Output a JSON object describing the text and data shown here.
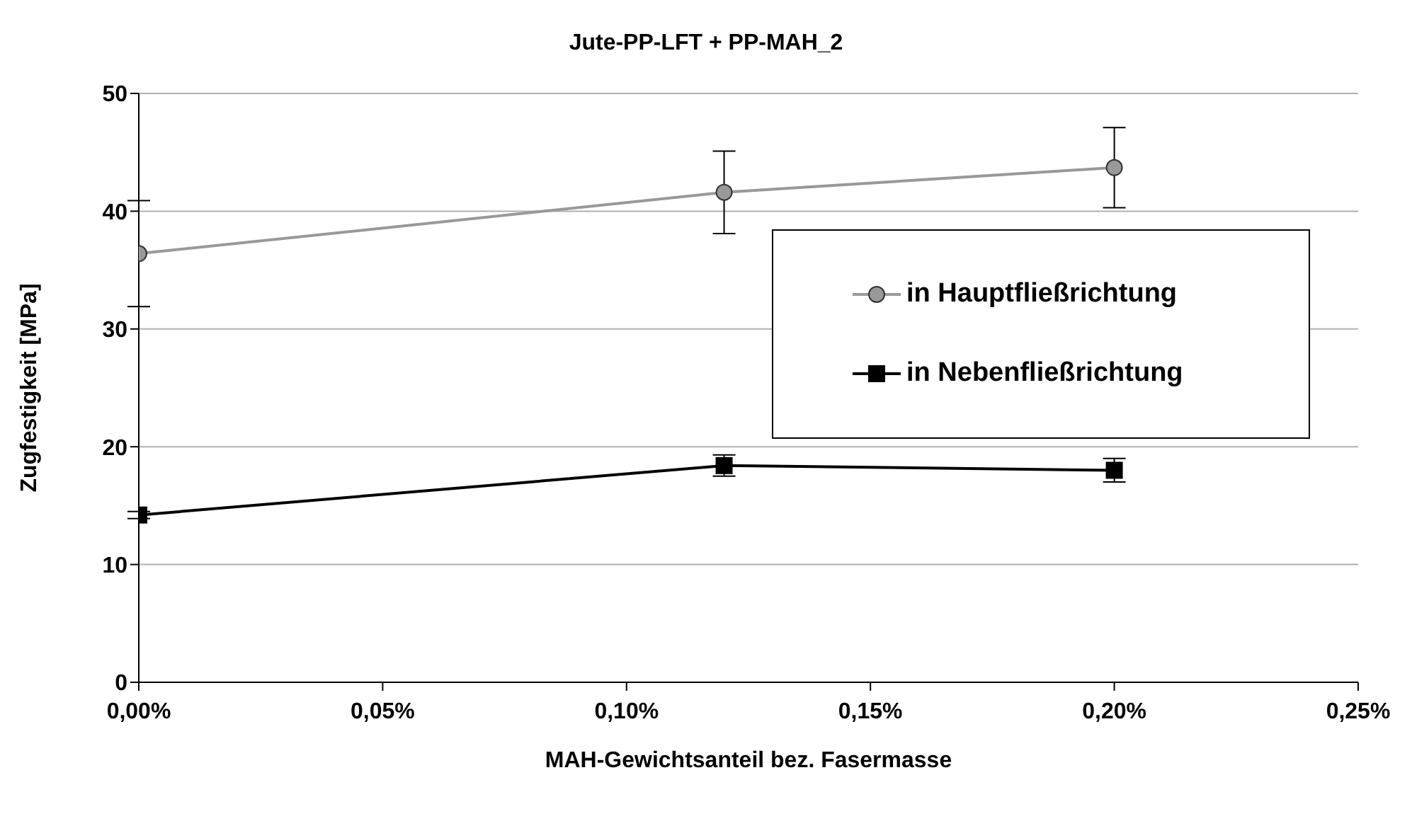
{
  "chart_data": {
    "type": "line",
    "title": "Jute-PP-LFT + PP-MAH_2",
    "xlabel": "MAH-Gewichtsanteil bez. Fasermasse",
    "ylabel": "Zugfestigkeit [MPa]",
    "x": [
      0,
      0.12,
      0.2
    ],
    "series": [
      {
        "name": "in Hauptfließrichtung",
        "color": "#999999",
        "marker": "circle",
        "values": [
          36.4,
          41.6,
          43.7
        ],
        "errors": [
          4.5,
          3.5,
          3.4
        ]
      },
      {
        "name": "in Nebenfließrichtung",
        "color": "#000000",
        "marker": "square",
        "values": [
          14.2,
          18.4,
          18.0
        ],
        "errors": [
          0.3,
          0.9,
          1.0
        ]
      }
    ],
    "xlim": [
      0,
      0.25
    ],
    "xticks": [
      {
        "value": 0,
        "label": "0,00%"
      },
      {
        "value": 0.05,
        "label": "0,05%"
      },
      {
        "value": 0.1,
        "label": "0,10%"
      },
      {
        "value": 0.15,
        "label": "0,15%"
      },
      {
        "value": 0.2,
        "label": "0,20%"
      },
      {
        "value": 0.25,
        "label": "0,25%"
      }
    ],
    "ylim": [
      0,
      50
    ],
    "yticks": [
      0,
      10,
      20,
      30,
      40,
      50
    ],
    "grid": "y",
    "legend": "right"
  }
}
